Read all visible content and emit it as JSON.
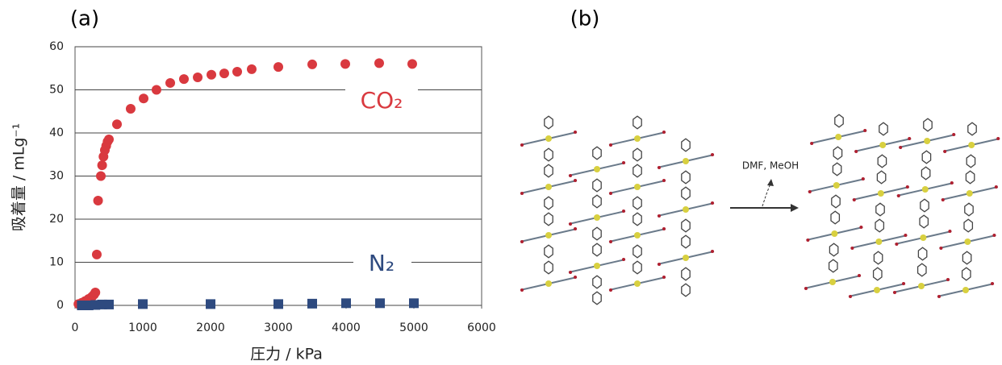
{
  "panel_a_label": "(a)",
  "chart_data": {
    "type": "scatter",
    "xlabel": "圧力 / kPa",
    "ylabel": "吸着量 / mLg⁻¹",
    "xlim": [
      0,
      6000
    ],
    "xticks": [
      0,
      1000,
      2000,
      3000,
      4000,
      5000,
      6000
    ],
    "ylim": [
      0,
      60
    ],
    "yticks": [
      0,
      10,
      20,
      30,
      40,
      50,
      60
    ],
    "grid": true,
    "series": [
      {
        "name": "CO₂",
        "color": "#d9393f",
        "marker": "circle",
        "x": [
          50,
          100,
          150,
          200,
          250,
          280,
          300,
          321,
          340,
          381,
          400,
          420,
          440,
          460,
          480,
          500,
          619,
          821,
          1012,
          1202,
          1405,
          1607,
          1810,
          2012,
          2202,
          2393,
          2607,
          3000,
          3500,
          3988,
          4488,
          4976
        ],
        "values": [
          0.3,
          0.6,
          1,
          1.5,
          2,
          2.5,
          3,
          11.8,
          24.3,
          30,
          32.5,
          34.5,
          36,
          37,
          38,
          38.5,
          42,
          45.6,
          48,
          50,
          51.6,
          52.5,
          52.9,
          53.5,
          53.8,
          54.2,
          54.8,
          55.3,
          55.9,
          56,
          56.2,
          56
        ]
      },
      {
        "name": "N₂",
        "color": "#2e4a7f",
        "marker": "square",
        "x": [
          100,
          200,
          300,
          400,
          500,
          1000,
          2000,
          3000,
          3500,
          4000,
          4500,
          5000
        ],
        "values": [
          0,
          0,
          0.1,
          0.2,
          0.2,
          0.3,
          0.3,
          0.3,
          0.4,
          0.5,
          0.5,
          0.5
        ]
      }
    ]
  },
  "panel_b": {
    "label": "(b)",
    "arrow_label": "DMF, MeOH"
  }
}
